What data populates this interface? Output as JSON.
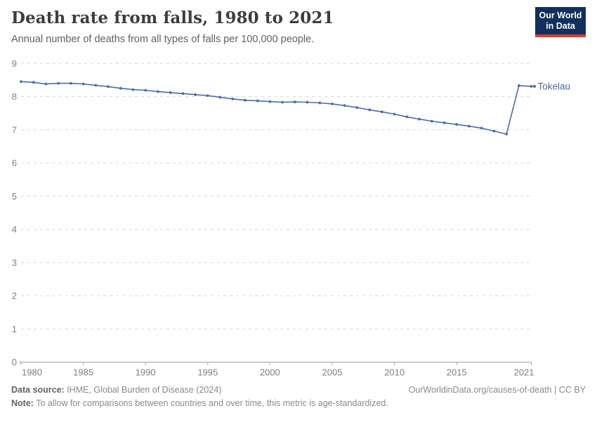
{
  "header": {
    "title": "Death rate from falls, 1980 to 2021",
    "subtitle": "Annual number of deaths from all types of falls per 100,000 people."
  },
  "logo": {
    "line1": "Our World",
    "line2": "in Data"
  },
  "colors": {
    "series_blue": "#4c6ca8",
    "logo_navy": "#12305b",
    "logo_red": "#dc3c2a",
    "grid_gray": "#d8d8d8",
    "axis_gray": "#a3a3a3",
    "tick_label_gray": "#7f7f7f"
  },
  "chart_data": {
    "type": "line",
    "title": "Death rate from falls, 1980 to 2021",
    "xlabel": "",
    "ylabel": "",
    "xlim": [
      1980,
      2021
    ],
    "ylim": [
      0,
      9
    ],
    "grid": "horizontal-dashed",
    "legend_position": "end-of-line-label",
    "x_ticks": [
      1980,
      1985,
      1990,
      1995,
      2000,
      2005,
      2010,
      2015,
      2021
    ],
    "y_ticks": [
      0,
      1,
      2,
      3,
      4,
      5,
      6,
      7,
      8,
      9
    ],
    "series": [
      {
        "name": "Tokelau",
        "color": "#4c6ca8",
        "x": [
          1980,
          1981,
          1982,
          1983,
          1984,
          1985,
          1986,
          1987,
          1988,
          1989,
          1990,
          1991,
          1992,
          1993,
          1994,
          1995,
          1996,
          1997,
          1998,
          1999,
          2000,
          2001,
          2002,
          2003,
          2004,
          2005,
          2006,
          2007,
          2008,
          2009,
          2010,
          2011,
          2012,
          2013,
          2014,
          2015,
          2016,
          2017,
          2018,
          2019,
          2020,
          2021
        ],
        "values": [
          8.45,
          8.43,
          8.38,
          8.4,
          8.4,
          8.38,
          8.34,
          8.3,
          8.25,
          8.21,
          8.19,
          8.15,
          8.12,
          8.09,
          8.06,
          8.03,
          7.98,
          7.93,
          7.89,
          7.87,
          7.85,
          7.83,
          7.84,
          7.83,
          7.81,
          7.78,
          7.73,
          7.67,
          7.6,
          7.54,
          7.47,
          7.39,
          7.32,
          7.26,
          7.21,
          7.16,
          7.11,
          7.05,
          6.96,
          6.87,
          8.33,
          8.31
        ]
      }
    ]
  },
  "footer": {
    "datasource_label": "Data source:",
    "datasource_text": " IHME, Global Burden of Disease (2024)",
    "link": "OurWorldinData.org/causes-of-death | CC BY",
    "note_label": "Note:",
    "note_text": " To allow for comparisons between countries and over time, this metric is age-standardized."
  }
}
